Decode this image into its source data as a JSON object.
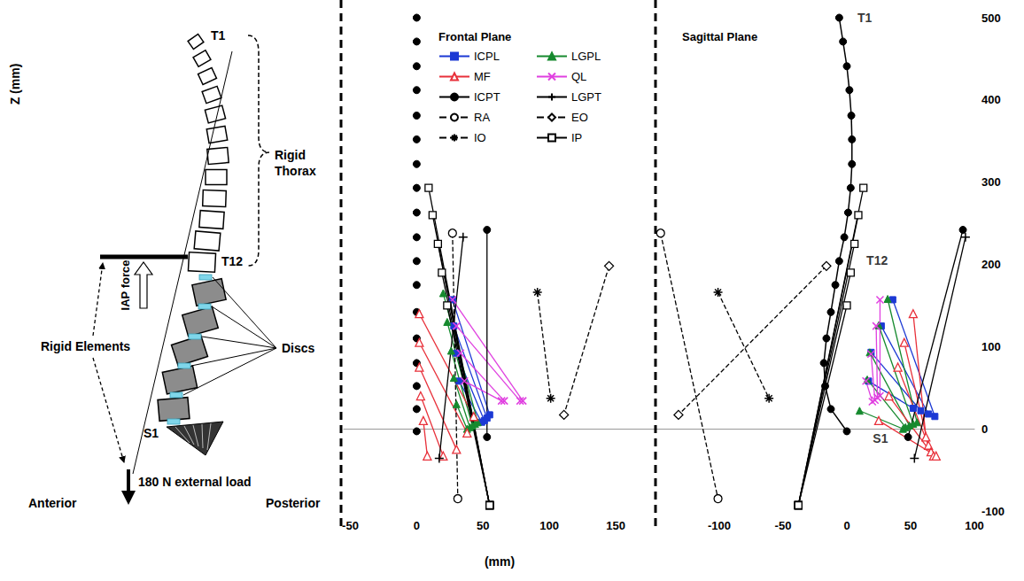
{
  "diagram": {
    "top_vertebra": "T1",
    "thorax": "Rigid Thorax",
    "thorax_end": "T12",
    "iap": "IAP force",
    "rigid_elements": "Rigid Elements",
    "discs": "Discs",
    "sacrum": "S1",
    "load": "180 N external load",
    "anterior": "Anterior",
    "posterior": "Posterior",
    "z_label": "Z (mm)"
  },
  "chart_data": {
    "type": "line",
    "x_label": "(mm)",
    "ylim": [
      -100,
      500
    ],
    "yticks": [
      -100,
      0,
      100,
      200,
      300,
      400,
      500
    ],
    "grid": false,
    "legend": "upper left",
    "panels": [
      {
        "title": "Frontal Plane",
        "xlim": [
          -55,
          180
        ],
        "xticks": [
          -50,
          0,
          50,
          100,
          150
        ],
        "spine": {
          "color": "#000000",
          "marker": "circle",
          "line_style": "none",
          "x": [
            0,
            0,
            0,
            0,
            0,
            0,
            0,
            0,
            0,
            0,
            0,
            0,
            0,
            0,
            0,
            0,
            0,
            0
          ],
          "y": [
            500,
            471,
            441,
            412,
            381,
            352,
            322,
            293,
            263,
            233,
            204,
            175,
            142,
            110,
            80,
            52,
            24,
            -3
          ]
        }
      },
      {
        "title": "Sagittal Plane",
        "xlim": [
          -150,
          100
        ],
        "xticks": [
          -100,
          -50,
          0,
          50,
          100
        ],
        "spine": {
          "color": "#000000",
          "marker": "circle",
          "line_style": "solid",
          "x": [
            -6,
            -3,
            0,
            2,
            3.5,
            4,
            4,
            3,
            1,
            -2,
            -6,
            -9,
            -12.5,
            -16,
            -18,
            -17,
            -12.5,
            0
          ],
          "y": [
            500,
            471,
            441,
            412,
            381,
            352,
            322,
            293,
            263,
            233,
            204,
            175,
            142,
            110,
            80,
            52,
            24,
            -3
          ]
        },
        "annotations": [
          {
            "text": "T1",
            "x": 8,
            "y": 500
          },
          {
            "text": "T12",
            "x": 15,
            "y": 205
          },
          {
            "text": "S1",
            "x": 20,
            "y": -12
          }
        ]
      }
    ],
    "series": [
      {
        "name": "ICPL",
        "color": "#1c39d4",
        "marker": "square",
        "line_style": "solid",
        "segments": [
          [
            [
              [
                27,
                157
              ],
              [
                55,
                17
              ]
            ],
            [
              [
                28,
                125
              ],
              [
                53,
                13
              ]
            ],
            [
              [
                30,
                92
              ],
              [
                51,
                10
              ]
            ],
            [
              [
                32,
                58
              ],
              [
                49,
                8
              ]
            ]
          ],
          [
            [
              [
                36,
                157
              ],
              [
                69,
                15
              ]
            ],
            [
              [
                27,
                125
              ],
              [
                64,
                18
              ]
            ],
            [
              [
                19,
                93
              ],
              [
                58,
                22
              ]
            ],
            [
              [
                17,
                58
              ],
              [
                52,
                25
              ]
            ]
          ]
        ]
      },
      {
        "name": "LGPL",
        "color": "#168a2e",
        "marker": "triangle",
        "line_style": "solid",
        "segments": [
          [
            [
              [
                20,
                165
              ],
              [
                46,
                8
              ]
            ],
            [
              [
                23,
                130
              ],
              [
                44,
                6
              ]
            ],
            [
              [
                26,
                95
              ],
              [
                42,
                4
              ]
            ],
            [
              [
                28,
                62
              ],
              [
                40,
                2
              ]
            ],
            [
              [
                30,
                30
              ],
              [
                38,
                0
              ]
            ]
          ],
          [
            [
              [
                32,
                158
              ],
              [
                55,
                8
              ]
            ],
            [
              [
                25,
                126
              ],
              [
                52,
                6
              ]
            ],
            [
              [
                18,
                93
              ],
              [
                49,
                4
              ]
            ],
            [
              [
                16,
                60
              ],
              [
                46,
                2
              ]
            ],
            [
              [
                10,
                22
              ],
              [
                44,
                0
              ]
            ]
          ]
        ]
      },
      {
        "name": "MF",
        "color": "#e8303a",
        "marker": "triangle_open",
        "line_style": "solid",
        "segments": [
          [
            [
              [
                2,
                140
              ],
              [
                43,
                15
              ]
            ],
            [
              [
                2,
                105
              ],
              [
                38,
                -5
              ]
            ],
            [
              [
                2,
                75
              ],
              [
                30,
                -25
              ]
            ],
            [
              [
                3,
                40
              ],
              [
                20,
                -33
              ]
            ],
            [
              [
                5,
                10
              ],
              [
                8,
                -33
              ]
            ]
          ],
          [
            [
              [
                52,
                140
              ],
              [
                62,
                -10
              ]
            ],
            [
              [
                45,
                105
              ],
              [
                64,
                -20
              ]
            ],
            [
              [
                40,
                75
              ],
              [
                66,
                -28
              ]
            ],
            [
              [
                33,
                40
              ],
              [
                68,
                -33
              ]
            ],
            [
              [
                25,
                10
              ],
              [
                70,
                -33
              ]
            ]
          ]
        ]
      },
      {
        "name": "QL",
        "color": "#e040e0",
        "marker": "x",
        "line_style": "solid",
        "segments": [
          [
            [
              [
                27,
                157
              ],
              [
                80,
                34
              ]
            ],
            [
              [
                30,
                125
              ],
              [
                78,
                34
              ]
            ],
            [
              [
                33,
                92
              ],
              [
                66,
                34
              ]
            ],
            [
              [
                36,
                58
              ],
              [
                64,
                34
              ]
            ]
          ],
          [
            [
              [
                26,
                157
              ],
              [
                26,
                40
              ]
            ],
            [
              [
                23,
                125
              ],
              [
                24,
                38
              ]
            ],
            [
              [
                19,
                91
              ],
              [
                22,
                35
              ]
            ],
            [
              [
                15,
                58
              ],
              [
                20,
                33
              ]
            ]
          ]
        ]
      },
      {
        "name": "ICPT",
        "color": "#000000",
        "marker": "circle",
        "line_style": "solid",
        "segments": [
          [
            [
              [
                53,
                242
              ],
              [
                53,
                -10
              ]
            ]
          ],
          [
            [
              [
                91,
                242
              ],
              [
                48,
                -10
              ]
            ]
          ]
        ]
      },
      {
        "name": "LGPT",
        "color": "#000000",
        "marker": "plus",
        "line_style": "solid",
        "segments": [
          [
            [
              [
                35,
                233
              ],
              [
                17,
                -36
              ]
            ]
          ],
          [
            [
              [
                93,
                233
              ],
              [
                53,
                -36
              ]
            ]
          ]
        ]
      },
      {
        "name": "RA",
        "color": "#000000",
        "marker": "circle_open",
        "line_style": "dashed",
        "segments": [
          [
            [
              [
                27,
                238
              ],
              [
                31,
                -85
              ]
            ]
          ],
          [
            [
              [
                -146,
                238
              ],
              [
                -101,
                -85
              ]
            ]
          ]
        ]
      },
      {
        "name": "EO",
        "color": "#000000",
        "marker": "diamond_open",
        "line_style": "dashed",
        "segments": [
          [
            [
              [
                145,
                198
              ],
              [
                111,
                17
              ]
            ]
          ],
          [
            [
              [
                -16,
                198
              ],
              [
                -132,
                17
              ]
            ]
          ]
        ]
      },
      {
        "name": "IO",
        "color": "#000000",
        "marker": "asterisk",
        "line_style": "dashed",
        "segments": [
          [
            [
              [
                91,
                166
              ],
              [
                101,
                37
              ]
            ]
          ],
          [
            [
              [
                -101,
                166
              ],
              [
                -61,
                37
              ]
            ]
          ]
        ]
      },
      {
        "name": "IP",
        "color": "#000000",
        "marker": "square_open",
        "line_style": "solid",
        "segments": [
          [
            [
              [
                9,
                293
              ],
              [
                55,
                -93
              ]
            ],
            [
              [
                12,
                260
              ],
              [
                55,
                -93
              ]
            ],
            [
              [
                16,
                225
              ],
              [
                55,
                -93
              ]
            ],
            [
              [
                19,
                190
              ],
              [
                55,
                -93
              ]
            ],
            [
              [
                23,
                150
              ],
              [
                55,
                -93
              ]
            ]
          ],
          [
            [
              [
                13,
                293
              ],
              [
                -38,
                -93
              ]
            ],
            [
              [
                9,
                260
              ],
              [
                -38,
                -93
              ]
            ],
            [
              [
                6,
                225
              ],
              [
                -38,
                -93
              ]
            ],
            [
              [
                3,
                190
              ],
              [
                -38,
                -93
              ]
            ],
            [
              [
                0,
                150
              ],
              [
                -38,
                -93
              ]
            ]
          ]
        ]
      }
    ]
  }
}
